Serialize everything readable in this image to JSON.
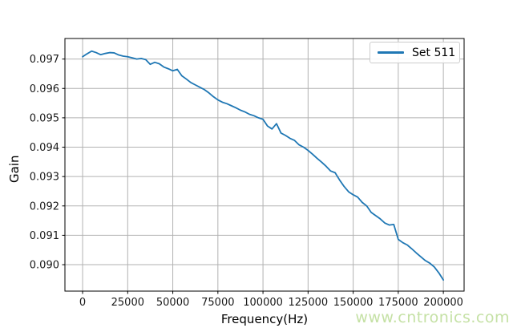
{
  "watermark": {
    "text": "www.cntronics.com",
    "color": "#c5e1a5"
  },
  "chart_data": {
    "type": "line",
    "title": "",
    "xlabel": "Frequency(Hz)",
    "ylabel": "Gain",
    "grid": true,
    "legend_position": "upper right",
    "background_color": "#ffffff",
    "grid_color": "#b2b2b2",
    "spine_color": "#000000",
    "tick_label_color": "#1a1a1a",
    "xlim": [
      -9800,
      211500
    ],
    "ylim": [
      0.0891,
      0.0977
    ],
    "xticks": {
      "values": [
        0,
        25000,
        50000,
        75000,
        100000,
        125000,
        150000,
        175000,
        200000
      ],
      "labels": [
        "0",
        "25000",
        "50000",
        "75000",
        "100000",
        "125000",
        "150000",
        "175000",
        "200000"
      ]
    },
    "yticks": {
      "values": [
        0.09,
        0.091,
        0.092,
        0.093,
        0.094,
        0.095,
        0.096,
        0.097
      ],
      "labels": [
        "0.090",
        "0.091",
        "0.092",
        "0.093",
        "0.094",
        "0.095",
        "0.096",
        "0.097"
      ]
    },
    "x": [
      0,
      2500,
      5000,
      7500,
      10000,
      12500,
      15000,
      17500,
      20000,
      22500,
      25000,
      27500,
      30000,
      32500,
      35000,
      37500,
      40000,
      42500,
      45000,
      47500,
      50000,
      52500,
      55000,
      57500,
      60000,
      62500,
      65000,
      67500,
      70000,
      72500,
      75000,
      77500,
      80000,
      82500,
      85000,
      87500,
      90000,
      92500,
      95000,
      97500,
      100000,
      102500,
      105000,
      107500,
      110000,
      112500,
      115000,
      117500,
      120000,
      122500,
      125000,
      127500,
      130000,
      132500,
      135000,
      137500,
      140000,
      142500,
      145000,
      147500,
      150000,
      152500,
      155000,
      157500,
      160000,
      162500,
      165000,
      167500,
      170000,
      172500,
      175000,
      177500,
      180000,
      182500,
      185000,
      187500,
      190000,
      192500,
      195000,
      197500,
      200000
    ],
    "series": [
      {
        "name": "Set 511",
        "color": "#1f77b4",
        "values": [
          0.09708,
          0.09718,
          0.09727,
          0.09722,
          0.09715,
          0.09719,
          0.09722,
          0.09721,
          0.09714,
          0.0971,
          0.09708,
          0.09704,
          0.097,
          0.09702,
          0.09698,
          0.09682,
          0.09689,
          0.09684,
          0.09673,
          0.09667,
          0.0966,
          0.09665,
          0.09643,
          0.09632,
          0.0962,
          0.09612,
          0.09604,
          0.09596,
          0.09585,
          0.09572,
          0.09561,
          0.09553,
          0.09548,
          0.09541,
          0.09534,
          0.09526,
          0.0952,
          0.09512,
          0.09507,
          0.095,
          0.09495,
          0.09472,
          0.09462,
          0.0948,
          0.09448,
          0.0944,
          0.0943,
          0.09423,
          0.09408,
          0.094,
          0.09389,
          0.09376,
          0.09362,
          0.09349,
          0.09335,
          0.09319,
          0.09313,
          0.09288,
          0.09266,
          0.09248,
          0.09238,
          0.0923,
          0.09212,
          0.092,
          0.09178,
          0.09167,
          0.09156,
          0.09142,
          0.09135,
          0.09137,
          0.09086,
          0.09075,
          0.09067,
          0.09054,
          0.0904,
          0.09027,
          0.09014,
          0.09005,
          0.08992,
          0.08972,
          0.08948
        ]
      }
    ]
  }
}
